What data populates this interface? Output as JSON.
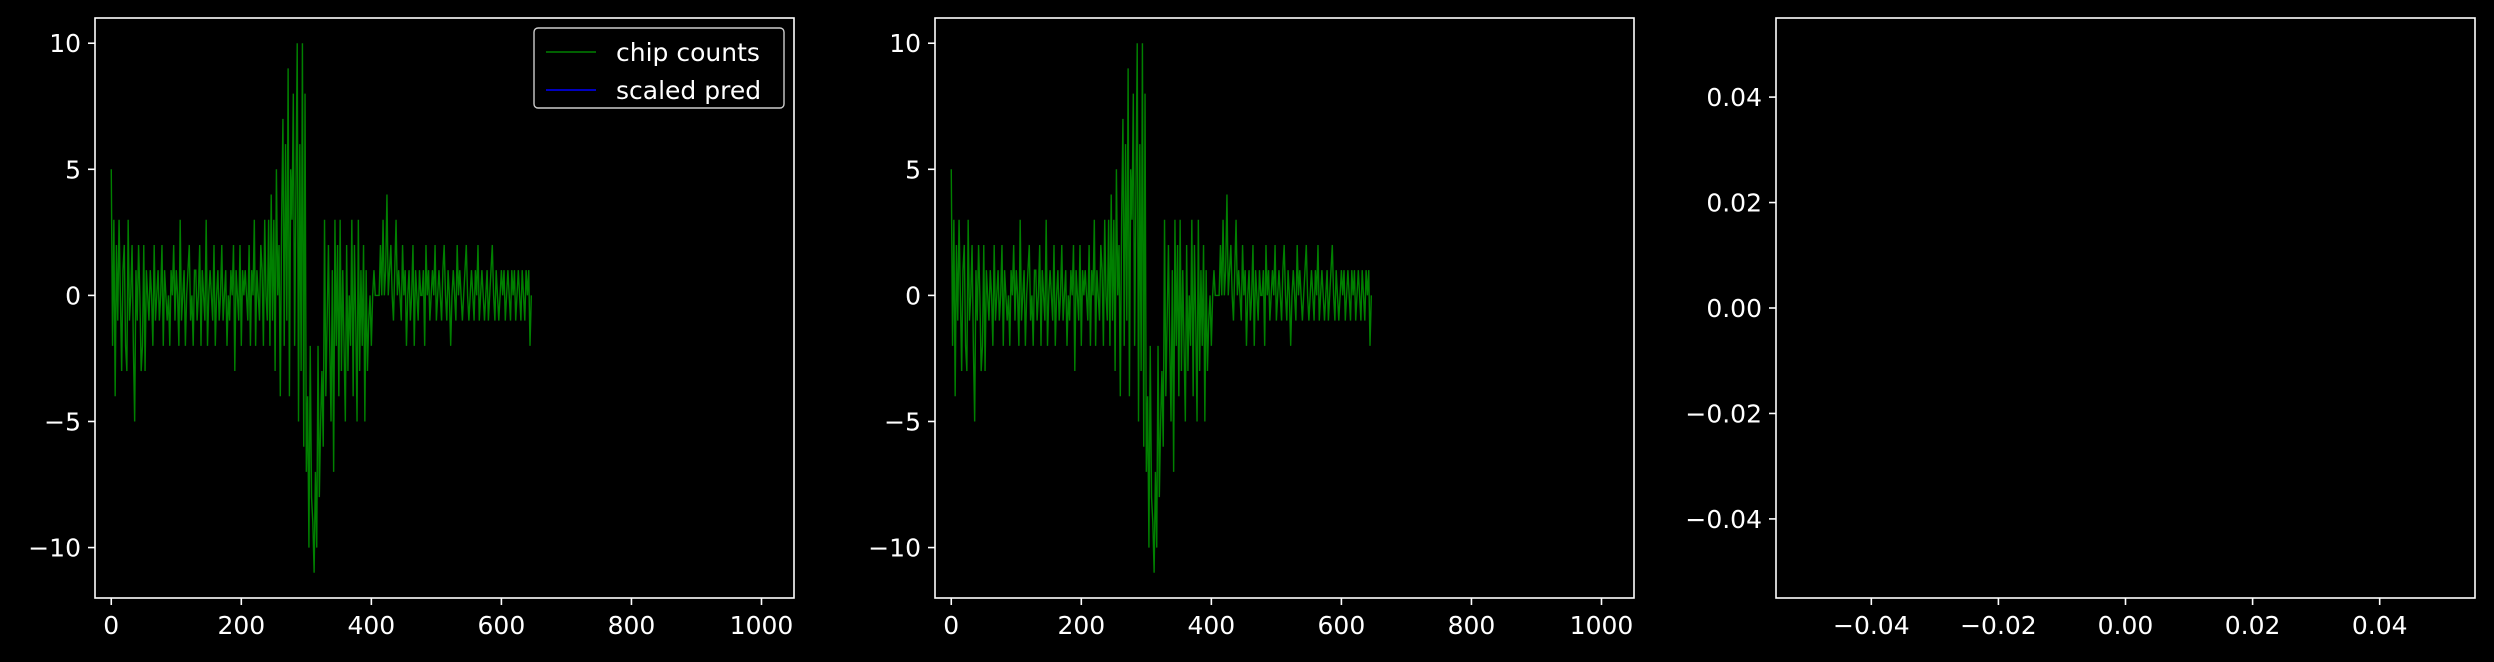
{
  "colors": {
    "background": "#000000",
    "axes": "#ffffff",
    "text": "#ffffff",
    "chip_counts": "#008000",
    "scaled_pred": "#0000ff"
  },
  "chart_data": [
    {
      "type": "line",
      "title": "",
      "xlabel": "",
      "ylabel": "",
      "xlim": [
        -25,
        1050
      ],
      "ylim": [
        -12,
        11
      ],
      "xticks": [
        0,
        200,
        400,
        600,
        800,
        1000
      ],
      "yticks": [
        -10,
        -5,
        0,
        5,
        10
      ],
      "xtick_labels": [
        "0",
        "200",
        "400",
        "600",
        "800",
        "1000"
      ],
      "ytick_labels": [
        "−10",
        "−5",
        "0",
        "5",
        "10"
      ],
      "grid": false,
      "legend": {
        "placement": "top-right",
        "entries": [
          {
            "label": "chip counts",
            "color": "#008000"
          },
          {
            "label": "scaled pred",
            "color": "#0000ff"
          }
        ]
      },
      "series": [
        {
          "name": "chip counts",
          "color": "#008000",
          "x_start": 0,
          "x_step": 2,
          "values": [
            5,
            -2,
            3,
            -4,
            2,
            -1,
            3,
            0,
            -3,
            1,
            2,
            -2,
            -3,
            3,
            -1,
            0,
            2,
            -2,
            -5,
            1,
            -1,
            2,
            0,
            -3,
            -2,
            2,
            -3,
            1,
            0,
            -1,
            1,
            0,
            -2,
            2,
            -1,
            0,
            1,
            -1,
            0,
            2,
            -2,
            1,
            0,
            -1,
            0,
            -2,
            1,
            0,
            2,
            -1,
            1,
            0,
            -2,
            3,
            -1,
            0,
            1,
            -2,
            0,
            1,
            2,
            -1,
            0,
            -2,
            1,
            1,
            -1,
            0,
            2,
            -2,
            1,
            0,
            -1,
            3,
            -2,
            0,
            1,
            0,
            -1,
            2,
            -2,
            0,
            1,
            -1,
            0,
            2,
            -1,
            0,
            1,
            -2,
            0,
            -1,
            1,
            0,
            2,
            -3,
            1,
            0,
            -1,
            2,
            -2,
            1,
            0,
            1,
            0,
            -1,
            2,
            -2,
            1,
            0,
            3,
            -2,
            1,
            0,
            -1,
            2,
            1,
            -2,
            3,
            0,
            -1,
            3,
            -2,
            4,
            -1,
            3,
            -3,
            5,
            0,
            2,
            -4,
            3,
            7,
            -2,
            6,
            -1,
            9,
            -4,
            5,
            3,
            8,
            -2,
            4,
            10,
            -5,
            6,
            -3,
            10,
            -6,
            8,
            -7,
            -4,
            -10,
            -2,
            -8,
            -9,
            -11,
            -7,
            -10,
            -2,
            -8,
            -5,
            -3,
            -6,
            3,
            -4,
            -1,
            2,
            -2,
            -5,
            1,
            -7,
            3,
            -2,
            2,
            -4,
            3,
            -3,
            1,
            -2,
            -5,
            2,
            -3,
            0,
            -2,
            3,
            -4,
            2,
            -1,
            -5,
            3,
            -3,
            1,
            -2,
            2,
            -5,
            1,
            -3,
            -1,
            0,
            -2,
            0,
            1,
            0,
            0,
            0,
            0,
            2,
            0,
            3,
            0,
            1,
            4,
            0,
            1,
            2,
            0,
            -1,
            1,
            3,
            0,
            1,
            0,
            -1,
            2,
            0,
            1,
            -2,
            0,
            1,
            -1,
            0,
            2,
            -2,
            1,
            0,
            -1,
            1,
            0,
            0,
            1,
            -2,
            2,
            0,
            1,
            -1,
            0,
            1,
            0,
            2,
            -1,
            0,
            1,
            0,
            -1,
            1,
            2,
            0,
            -1,
            1,
            0,
            -2,
            0,
            1,
            0,
            -1,
            2,
            0,
            1,
            0,
            -1,
            0,
            1,
            2,
            0,
            -1,
            0,
            1,
            0,
            -1,
            1,
            0,
            2,
            -1,
            0,
            1,
            0,
            -1,
            0,
            1,
            -1,
            0,
            1,
            2,
            0,
            -1,
            1,
            0,
            -1,
            0,
            1,
            0,
            1,
            -1,
            0,
            1,
            0,
            -1,
            1,
            0,
            1,
            -1,
            0,
            1,
            0,
            -1,
            1,
            0,
            -1,
            1,
            0,
            1,
            -2,
            0
          ]
        },
        {
          "name": "scaled pred",
          "color": "#0000ff",
          "x_start": 0,
          "x_step": 2,
          "values": []
        }
      ]
    },
    {
      "type": "line",
      "title": "",
      "xlabel": "",
      "ylabel": "",
      "xlim": [
        -25,
        1050
      ],
      "ylim": [
        -12,
        11
      ],
      "xticks": [
        0,
        200,
        400,
        600,
        800,
        1000
      ],
      "yticks": [
        -10,
        -5,
        0,
        5,
        10
      ],
      "xtick_labels": [
        "0",
        "200",
        "400",
        "600",
        "800",
        "1000"
      ],
      "ytick_labels": [
        "−10",
        "−5",
        "0",
        "5",
        "10"
      ],
      "grid": false,
      "legend": null,
      "series": [
        {
          "color": "#008000",
          "x_start": 0,
          "x_step": 2,
          "values": [
            5,
            -2,
            3,
            -4,
            2,
            -1,
            3,
            0,
            -3,
            1,
            2,
            -2,
            -3,
            3,
            -1,
            0,
            2,
            -2,
            -5,
            1,
            -1,
            2,
            0,
            -3,
            -2,
            2,
            -3,
            1,
            0,
            -1,
            1,
            0,
            -2,
            2,
            -1,
            0,
            1,
            -1,
            0,
            2,
            -2,
            1,
            0,
            -1,
            0,
            -2,
            1,
            0,
            2,
            -1,
            1,
            0,
            -2,
            3,
            -1,
            0,
            1,
            -2,
            0,
            1,
            2,
            -1,
            0,
            -2,
            1,
            1,
            -1,
            0,
            2,
            -2,
            1,
            0,
            -1,
            3,
            -2,
            0,
            1,
            0,
            -1,
            2,
            -2,
            0,
            1,
            -1,
            0,
            2,
            -1,
            0,
            1,
            -2,
            0,
            -1,
            1,
            0,
            2,
            -3,
            1,
            0,
            -1,
            2,
            -2,
            1,
            0,
            1,
            0,
            -1,
            2,
            -2,
            1,
            0,
            3,
            -2,
            1,
            0,
            -1,
            2,
            1,
            -2,
            3,
            0,
            -1,
            3,
            -2,
            4,
            -1,
            3,
            -3,
            5,
            0,
            2,
            -4,
            3,
            7,
            -2,
            6,
            -1,
            9,
            -4,
            5,
            3,
            8,
            -2,
            4,
            10,
            -5,
            6,
            -3,
            10,
            -6,
            8,
            -7,
            -4,
            -10,
            -2,
            -8,
            -9,
            -11,
            -7,
            -10,
            -2,
            -8,
            -5,
            -3,
            -6,
            3,
            -4,
            -1,
            2,
            -2,
            -5,
            1,
            -7,
            3,
            -2,
            2,
            -4,
            3,
            -3,
            1,
            -2,
            -5,
            2,
            -3,
            0,
            -2,
            3,
            -4,
            2,
            -1,
            -5,
            3,
            -3,
            1,
            -2,
            2,
            -5,
            1,
            -3,
            -1,
            0,
            -2,
            0,
            1,
            0,
            0,
            0,
            0,
            2,
            0,
            3,
            0,
            1,
            4,
            0,
            1,
            2,
            0,
            -1,
            1,
            3,
            0,
            1,
            0,
            -1,
            2,
            0,
            1,
            -2,
            0,
            1,
            -1,
            0,
            2,
            -2,
            1,
            0,
            -1,
            1,
            0,
            0,
            1,
            -2,
            2,
            0,
            1,
            -1,
            0,
            1,
            0,
            2,
            -1,
            0,
            1,
            0,
            -1,
            1,
            2,
            0,
            -1,
            1,
            0,
            -2,
            0,
            1,
            0,
            -1,
            2,
            0,
            1,
            0,
            -1,
            0,
            1,
            2,
            0,
            -1,
            0,
            1,
            0,
            -1,
            1,
            0,
            2,
            -1,
            0,
            1,
            0,
            -1,
            0,
            1,
            -1,
            0,
            1,
            2,
            0,
            -1,
            1,
            0,
            -1,
            0,
            1,
            0,
            1,
            -1,
            0,
            1,
            0,
            -1,
            1,
            0,
            1,
            -1,
            0,
            1,
            0,
            -1,
            1,
            0,
            -1,
            1,
            0,
            1,
            -2,
            0
          ]
        }
      ]
    },
    {
      "type": "line",
      "title": "",
      "xlabel": "",
      "ylabel": "",
      "xlim": [
        -0.055,
        0.055
      ],
      "ylim": [
        -0.055,
        0.055
      ],
      "xticks": [
        -0.04,
        -0.02,
        0.0,
        0.02,
        0.04
      ],
      "yticks": [
        -0.04,
        -0.02,
        0.0,
        0.02,
        0.04
      ],
      "xtick_labels": [
        "−0.04",
        "−0.02",
        "0.00",
        "0.02",
        "0.04"
      ],
      "ytick_labels": [
        "−0.04",
        "−0.02",
        "0.00",
        "0.02",
        "0.04"
      ],
      "grid": false,
      "legend": null,
      "series": []
    }
  ]
}
